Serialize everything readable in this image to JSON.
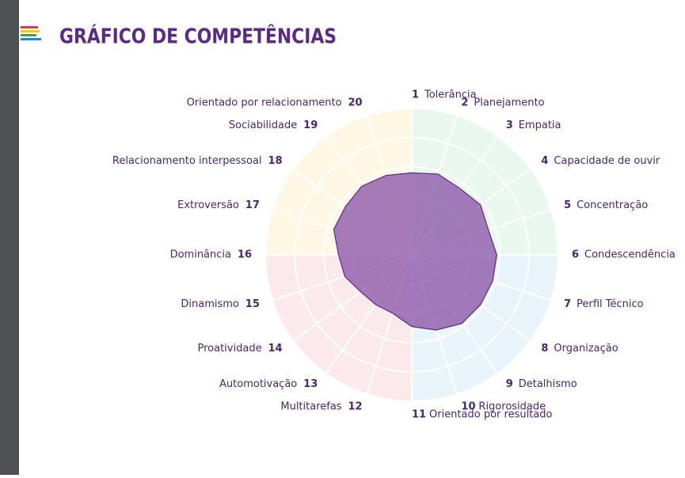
{
  "header": {
    "title": "GRÁFICO DE COMPETÊNCIAS"
  },
  "chart_data": {
    "type": "radar",
    "numbers": [
      "1",
      "2",
      "3",
      "4",
      "5",
      "6",
      "7",
      "8",
      "9",
      "10",
      "11",
      "12",
      "13",
      "14",
      "15",
      "16",
      "17",
      "18",
      "19",
      "20"
    ],
    "categories": [
      "Tolerância",
      "Planejamento",
      "Empatia",
      "Capacidade de ouvir",
      "Concentração",
      "Condescendência",
      "Perfil Técnico",
      "Organização",
      "Detalhismo",
      "Rigorosidade",
      "Orientado por resultado",
      "Multitarefas",
      "Automotivação",
      "Proatividade",
      "Dinamismo",
      "Dominância",
      "Extroversão",
      "Relacionamento interpessoal",
      "Sociabilidade",
      "Orientado por relacionamento"
    ],
    "values": [
      56,
      58,
      56,
      58,
      55,
      58,
      58,
      58,
      58,
      54,
      49,
      42,
      42,
      43,
      48,
      50,
      56,
      56,
      58,
      57
    ],
    "color": "#8e5aab",
    "ylim": [
      0,
      100
    ]
  }
}
